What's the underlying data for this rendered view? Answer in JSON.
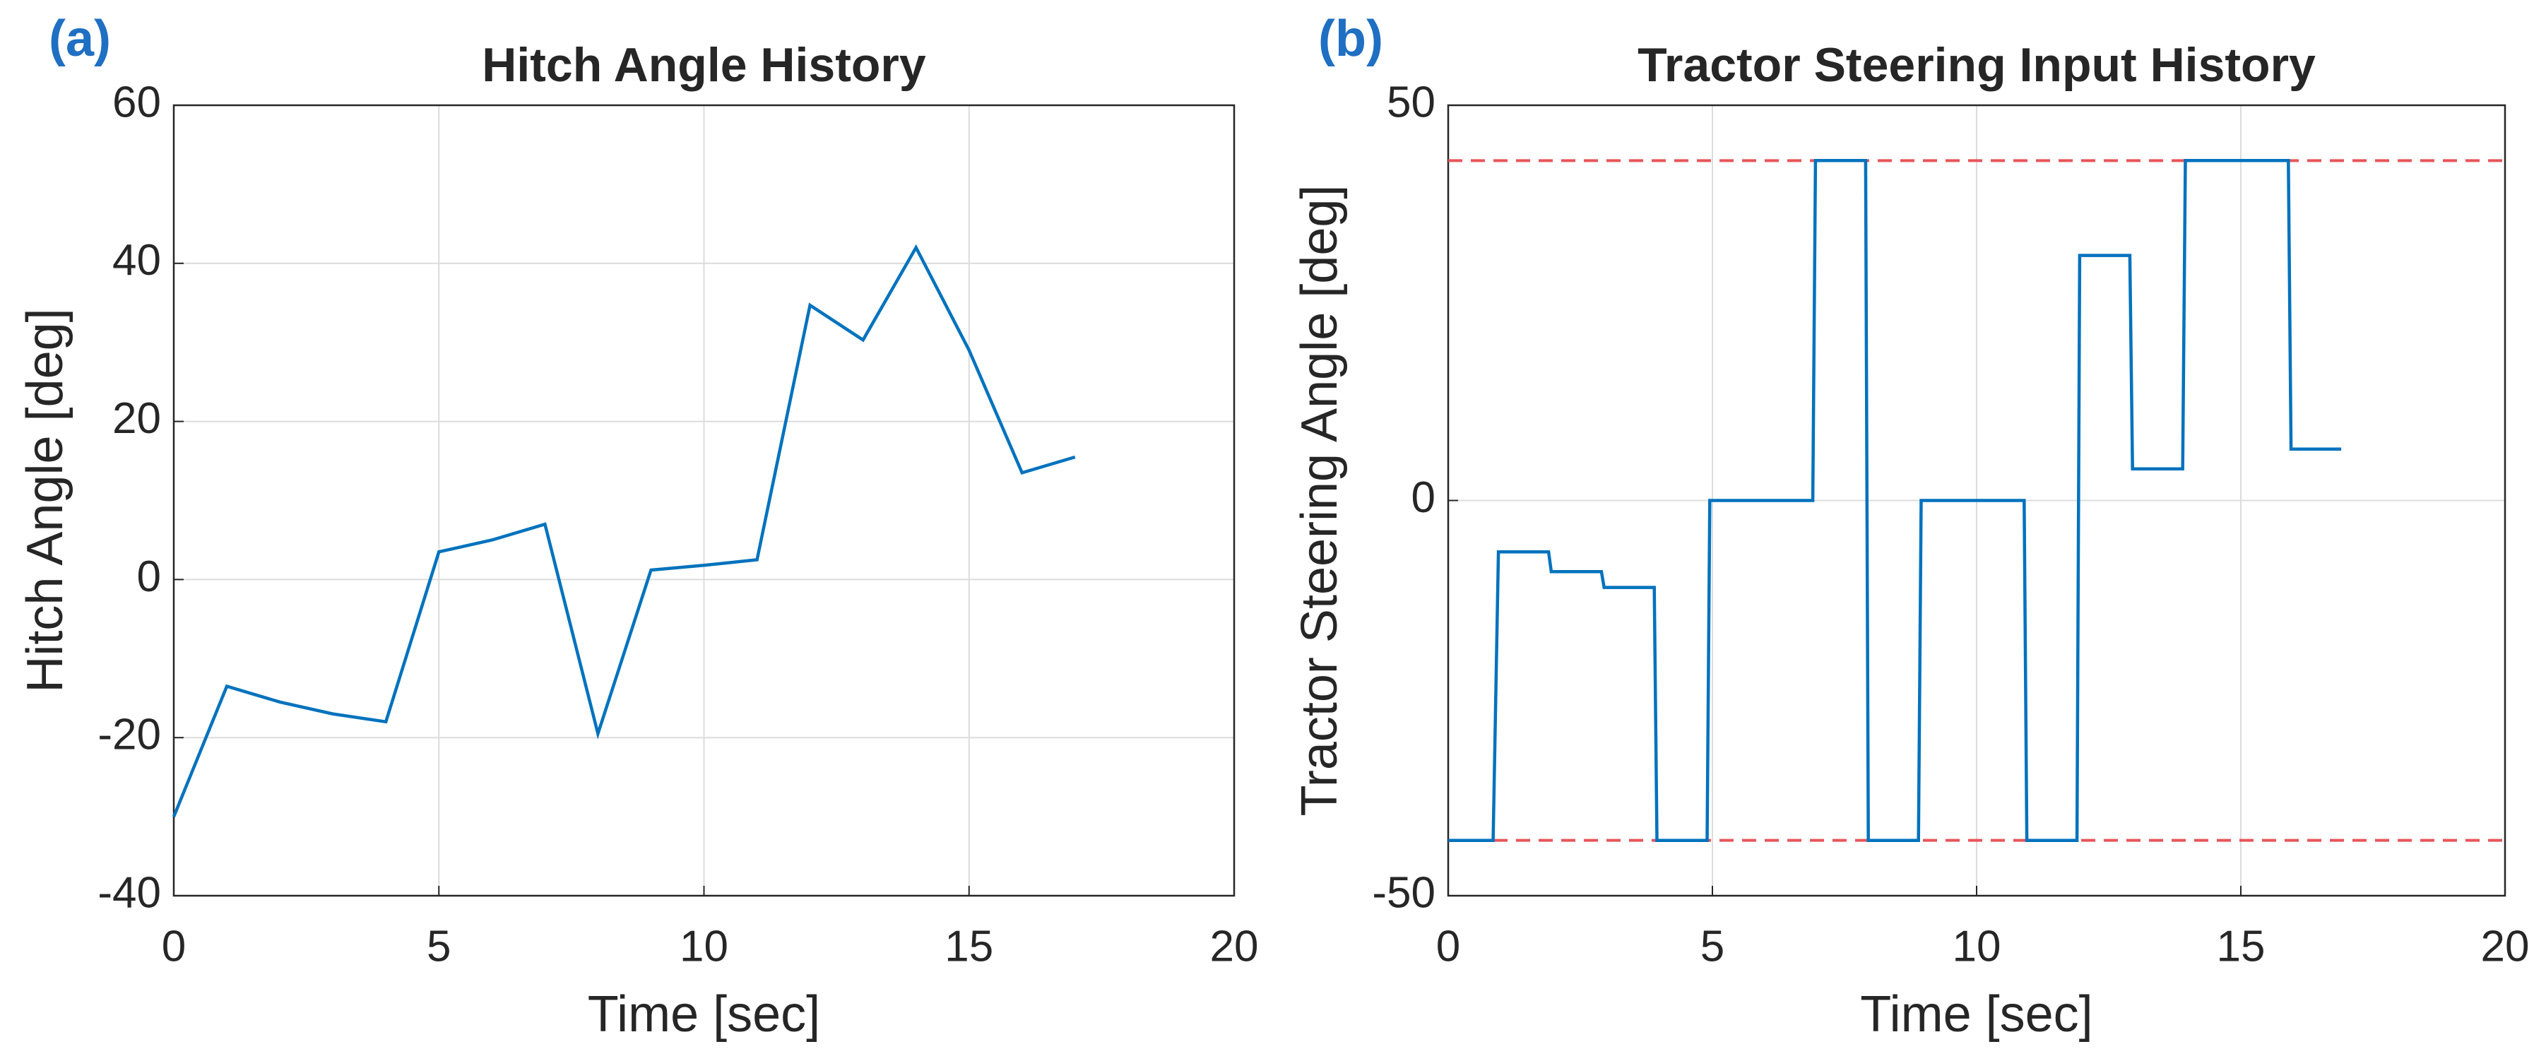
{
  "chart_data": [
    {
      "type": "line",
      "panel_label": "(a)",
      "title": "Hitch Angle History",
      "x_label": "Time [sec]",
      "y_label": "Hitch Angle [deg]",
      "x": [
        0,
        1,
        2,
        3,
        4,
        5,
        6,
        7,
        8,
        9,
        10,
        11,
        12,
        13,
        14,
        15,
        16,
        17
      ],
      "values": [
        -30,
        -13.5,
        -15.5,
        -17,
        -18,
        3.5,
        5,
        7,
        -19.5,
        1.2,
        1.8,
        2.5,
        34.7,
        30.3,
        42,
        29,
        13.5,
        15.5
      ],
      "color": "#0072bd",
      "xlim": [
        0,
        20
      ],
      "xticks": [
        0,
        5,
        10,
        15,
        20
      ],
      "ylim": [
        -40,
        60
      ],
      "yticks": [
        -40,
        -20,
        0,
        20,
        40,
        60
      ],
      "grid": true
    },
    {
      "type": "line",
      "panel_label": "(b)",
      "title": "Tractor Steering Input History",
      "x_label": "Time [sec]",
      "y_label": "Tractor Steering Angle [deg]",
      "x": [
        0,
        0.85,
        0.95,
        1.9,
        1.95,
        2.9,
        2.95,
        3.9,
        3.95,
        4.9,
        4.95,
        6.9,
        6.95,
        7.9,
        7.95,
        8.9,
        8.95,
        10.9,
        10.95,
        11.9,
        11.95,
        12.9,
        12.95,
        13.9,
        13.95,
        15.9,
        15.95,
        16.9
      ],
      "values": [
        -43,
        -43,
        -6.5,
        -6.5,
        -9,
        -9,
        -11,
        -11,
        -43,
        -43,
        0,
        0,
        43,
        43,
        -43,
        -43,
        0,
        0,
        -43,
        -43,
        31,
        31,
        4,
        4,
        43,
        43,
        6.5,
        6.5
      ],
      "color": "#0072bd",
      "reference_lines": [
        43,
        -43
      ],
      "reference_color": "#e8555a",
      "xlim": [
        0,
        20
      ],
      "xticks": [
        0,
        5,
        10,
        15,
        20
      ],
      "ylim": [
        -50,
        50
      ],
      "yticks": [
        -50,
        0,
        50
      ],
      "grid": true
    }
  ]
}
